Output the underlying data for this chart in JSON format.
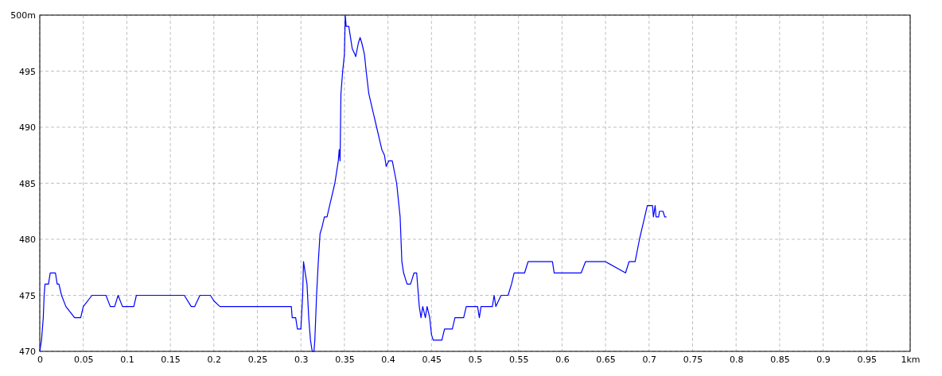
{
  "chart_data": {
    "type": "line",
    "xlim": [
      0,
      1
    ],
    "ylim": [
      470,
      500
    ],
    "xticks": [
      0,
      0.05,
      0.1,
      0.15,
      0.2,
      0.25,
      0.3,
      0.35,
      0.4,
      0.45,
      0.5,
      0.55,
      0.6,
      0.65,
      0.7,
      0.75,
      0.8,
      0.85,
      0.9,
      0.95,
      {
        "value": 1,
        "label": "1km"
      }
    ],
    "yticks": [
      470,
      475,
      480,
      485,
      490,
      495,
      {
        "value": 500,
        "label": "500m"
      }
    ],
    "grid": true,
    "line_style": "solid",
    "x": [
      0,
      0.002,
      0.004,
      0.005,
      0.006,
      0.01,
      0.012,
      0.018,
      0.02,
      0.022,
      0.025,
      0.03,
      0.04,
      0.047,
      0.05,
      0.06,
      0.076,
      0.081,
      0.086,
      0.09,
      0.095,
      0.108,
      0.111,
      0.166,
      0.174,
      0.178,
      0.184,
      0.196,
      0.2,
      0.207,
      0.289,
      0.29,
      0.294,
      0.296,
      0.3,
      0.302,
      0.303,
      0.305,
      0.307,
      0.309,
      0.311,
      0.313,
      0.315,
      0.316,
      0.318,
      0.32,
      0.322,
      0.324,
      0.327,
      0.33,
      0.333,
      0.336,
      0.339,
      0.341,
      0.343,
      0.344,
      0.345,
      0.346,
      0.348,
      0.35,
      0.351,
      0.352,
      0.355,
      0.357,
      0.359,
      0.362,
      0.363,
      0.366,
      0.368,
      0.37,
      0.373,
      0.375,
      0.378,
      0.381,
      0.384,
      0.387,
      0.39,
      0.393,
      0.396,
      0.398,
      0.401,
      0.405,
      0.41,
      0.414,
      0.416,
      0.418,
      0.42,
      0.422,
      0.426,
      0.43,
      0.433,
      0.436,
      0.438,
      0.44,
      0.443,
      0.445,
      0.448,
      0.45,
      0.452,
      0.462,
      0.465,
      0.474,
      0.477,
      0.487,
      0.49,
      0.503,
      0.505,
      0.507,
      0.52,
      0.522,
      0.524,
      0.53,
      0.538,
      0.542,
      0.545,
      0.557,
      0.561,
      0.589,
      0.591,
      0.622,
      0.627,
      0.65,
      0.673,
      0.677,
      0.684,
      0.689,
      0.692,
      0.695,
      0.698,
      0.704,
      0.705,
      0.707,
      0.708,
      0.711,
      0.712,
      0.716,
      0.718,
      0.72
    ],
    "series": [
      {
        "color": "#0000ff",
        "values": [
          470,
          471,
          473,
          475,
          476,
          476,
          477,
          477,
          476,
          476,
          475,
          474,
          473,
          473,
          474,
          475,
          475,
          474,
          474,
          475,
          474,
          474,
          475,
          475,
          474,
          474,
          475,
          475,
          474.5,
          474,
          474,
          473,
          473,
          472,
          472,
          475,
          478,
          477,
          476,
          473,
          471,
          470,
          470,
          471,
          475,
          478,
          480.5,
          481,
          482,
          482,
          483,
          484,
          485,
          486,
          487,
          488,
          487,
          493,
          495,
          496.5,
          500,
          499,
          499,
          498,
          497,
          496.5,
          496.3,
          497.5,
          498,
          497.5,
          496.5,
          495,
          493,
          492,
          491,
          490,
          489,
          488,
          487.5,
          486.5,
          487,
          487,
          485,
          482,
          478,
          477,
          476.5,
          476,
          476,
          477,
          477,
          474,
          473,
          474,
          473,
          474,
          473,
          471.5,
          471,
          471,
          472,
          472,
          473,
          473,
          474,
          474,
          473,
          474,
          474,
          475,
          474,
          475,
          475,
          476,
          477,
          477,
          478,
          478,
          477,
          477,
          478,
          478,
          477,
          478,
          478,
          480,
          481,
          482,
          483,
          483,
          482,
          483,
          482,
          482,
          482.5,
          482.5,
          482,
          482
        ]
      }
    ]
  }
}
